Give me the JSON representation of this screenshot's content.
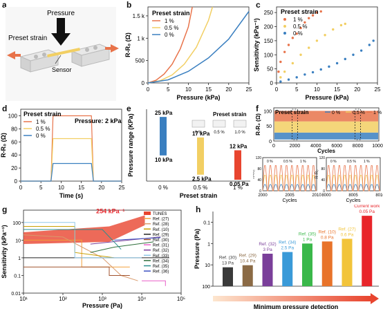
{
  "panel_labels": [
    "a",
    "b",
    "c",
    "d",
    "e",
    "f",
    "g",
    "h"
  ],
  "colors": {
    "orange": "#e8734a",
    "yellow": "#f2cf63",
    "blue": "#3a7fc0",
    "red": "#e8452f",
    "brown": "#8b5a2b"
  },
  "panel_a": {
    "pressure_label": "Pressure",
    "preset_strain_label": "Preset strain",
    "sensor_label": "Sensor"
  },
  "chart_data": [
    {
      "id": "b",
      "type": "line",
      "xlabel": "Pressure (kPa)",
      "ylabel": "R-R₀ (Ω)",
      "xlim": [
        0,
        25
      ],
      "ylim": [
        0,
        1700
      ],
      "xticks": [
        "0",
        "5",
        "10",
        "15",
        "20",
        "25"
      ],
      "yticks": [
        "0",
        "500",
        "1 k",
        "1.5 k"
      ],
      "legend_title": "Preset strain",
      "series": [
        {
          "name": "1 %",
          "color": "#e8734a",
          "x": [
            0,
            2,
            4,
            6,
            8,
            10,
            11
          ],
          "y": [
            0,
            60,
            200,
            420,
            760,
            1250,
            1700
          ]
        },
        {
          "name": "0.5 %",
          "color": "#f2cf63",
          "x": [
            0,
            3,
            6,
            9,
            12,
            15,
            16
          ],
          "y": [
            0,
            50,
            180,
            420,
            800,
            1400,
            1700
          ]
        },
        {
          "name": "0 %",
          "color": "#3a7fc0",
          "x": [
            0,
            5,
            10,
            15,
            20,
            25
          ],
          "y": [
            0,
            70,
            260,
            560,
            980,
            1600
          ]
        }
      ]
    },
    {
      "id": "c",
      "type": "scatter",
      "xlabel": "Pressure (kPa)",
      "ylabel": "Sensitivity (kPa⁻¹)",
      "xlim": [
        0,
        25
      ],
      "ylim": [
        0,
        270
      ],
      "xticks": [
        "0",
        "5",
        "10",
        "15",
        "20",
        "25"
      ],
      "yticks": [
        "0",
        "50",
        "100",
        "150",
        "200",
        "250"
      ],
      "legend_title": "Preset strain",
      "series": [
        {
          "name": "1 %",
          "color": "#e8734a",
          "x": [
            0.5,
            1,
            2,
            3,
            4,
            5,
            6,
            7,
            8,
            9,
            10,
            11
          ],
          "y": [
            40,
            75,
            110,
            135,
            160,
            175,
            195,
            215,
            230,
            240,
            250,
            254
          ]
        },
        {
          "name": "0.5 %",
          "color": "#f2cf63",
          "x": [
            1,
            2,
            4,
            6,
            8,
            10,
            12,
            14,
            16,
            17
          ],
          "y": [
            20,
            40,
            70,
            100,
            125,
            150,
            170,
            190,
            205,
            210
          ]
        },
        {
          "name": "0 %",
          "color": "#3a7fc0",
          "x": [
            1,
            3,
            5,
            7,
            9,
            11,
            13,
            15,
            17,
            19,
            21,
            23,
            24
          ],
          "y": [
            5,
            12,
            20,
            30,
            38,
            48,
            58,
            70,
            85,
            100,
            115,
            135,
            150
          ]
        }
      ]
    },
    {
      "id": "d",
      "type": "line",
      "xlabel": "Time (s)",
      "ylabel": "R-R₀ (Ω)",
      "xlim": [
        0,
        25
      ],
      "ylim": [
        0,
        110
      ],
      "xticks": [
        "0",
        "5",
        "10",
        "15",
        "20",
        "25"
      ],
      "yticks": [
        "0",
        "20",
        "40",
        "60",
        "80",
        "100"
      ],
      "legend_title": "Preset strain",
      "annotation": "Pressure: 2 kPa",
      "series": [
        {
          "name": "1 %",
          "color": "#e8734a",
          "x": [
            0,
            7.5,
            8,
            17.5,
            18,
            25
          ],
          "y": [
            0,
            0,
            100,
            100,
            0,
            0
          ]
        },
        {
          "name": "0.5 %",
          "color": "#f2cf63",
          "x": [
            0,
            7.5,
            8,
            17.5,
            18,
            25
          ],
          "y": [
            0,
            0,
            65,
            65,
            0,
            0
          ]
        },
        {
          "name": "0 %",
          "color": "#3a7fc0",
          "x": [
            0,
            7.5,
            8,
            17.5,
            18,
            25
          ],
          "y": [
            0,
            0,
            27,
            27,
            0,
            0
          ]
        }
      ]
    },
    {
      "id": "e",
      "type": "bar",
      "xlabel": "Preset strain",
      "ylabel": "Pressure range (KPa)",
      "categories": [
        "0 %",
        "0.5 %",
        "1 %"
      ],
      "bars": [
        {
          "category": "0 %",
          "top": "25 kPa",
          "bottom": "10 kPa",
          "color": "#3a7fc0",
          "from": 10,
          "to": 25
        },
        {
          "category": "0.5 %",
          "top": "17 kPa",
          "bottom": "2.5 kPa",
          "color": "#f2cf63",
          "from": 2.5,
          "to": 17
        },
        {
          "category": "1 %",
          "top": "12 kPa",
          "bottom": "0.05 Pa",
          "color": "#e8452f",
          "from": 0.05,
          "to": 12
        }
      ],
      "inset_title": "Preset strain",
      "inset_labels": [
        "0 %",
        "0.5 %",
        "1.0 %"
      ]
    },
    {
      "id": "f",
      "type": "line",
      "xlabel": "Cycles",
      "ylabel": "R-R₀ (Ω)",
      "xlim": [
        0,
        10000
      ],
      "ylim": [
        0,
        110
      ],
      "xticks": [
        "0",
        "2000",
        "4000",
        "6000",
        "8000",
        "10000"
      ],
      "yticks": [
        "0",
        "50",
        "100"
      ],
      "legend_title": "Preset strain",
      "series": [
        {
          "name": "0 %",
          "color": "#3a7fc0",
          "band": [
            5,
            28
          ]
        },
        {
          "name": "0.5 %",
          "color": "#f2cf63",
          "band": [
            28,
            65
          ]
        },
        {
          "name": "1 %",
          "color": "#e8734a",
          "band": [
            65,
            100
          ]
        }
      ],
      "insets": [
        {
          "xlabel": "Cycles",
          "ylabel": "R-R₀",
          "xticks": [
            "2000",
            "2005",
            "2010"
          ],
          "yticks": [
            "0",
            "20",
            "40",
            "60",
            "80",
            "100",
            "120"
          ],
          "legend": [
            "0 %",
            "0.5 %",
            "1 %"
          ]
        },
        {
          "xlabel": "Cycles",
          "ylabel": "R-R₀",
          "xticks": [
            "8000",
            "8005",
            "8010"
          ],
          "yticks": [
            "0",
            "20",
            "40",
            "60",
            "80",
            "100",
            "120"
          ],
          "legend": [
            "0 %",
            "0.5 %",
            "1 %"
          ]
        }
      ]
    },
    {
      "id": "g",
      "type": "line",
      "xlabel": "Pressure (Pa)",
      "ylabel": "Sensitivity (kPa⁻¹)",
      "xscale": "log",
      "yscale": "log",
      "xlim": [
        10,
        100000
      ],
      "ylim": [
        0.01,
        500
      ],
      "xticks": [
        "10¹",
        "10²",
        "10³",
        "10⁴",
        "10⁵"
      ],
      "yticks": [
        "0.01",
        "0.1",
        "1",
        "10",
        "100"
      ],
      "annotation": "254 kPa⁻¹",
      "legend": [
        {
          "name": "TUNES",
          "color": "#e8452f"
        },
        {
          "name": "Ref. (27)",
          "color": "#f2a03a"
        },
        {
          "name": "Ref. (28)",
          "color": "#d99a6c"
        },
        {
          "name": "Ref. (10)",
          "color": "#c8a000"
        },
        {
          "name": "Ref. (29)",
          "color": "#222222"
        },
        {
          "name": "Ref. (30)",
          "color": "#a0522d"
        },
        {
          "name": "Ref. (31)",
          "color": "#e85fc8"
        },
        {
          "name": "Ref. (32)",
          "color": "#7a3f9a"
        },
        {
          "name": "Ref. (33)",
          "color": "#8fc8e8"
        },
        {
          "name": "Ref. (34)",
          "color": "#2e6e3a"
        },
        {
          "name": "Ref. (35)",
          "color": "#2a8f8f"
        },
        {
          "name": "Ref. (36)",
          "color": "#3a4fc0"
        }
      ]
    },
    {
      "id": "h",
      "type": "bar",
      "ylabel": "Pressure (Pa)",
      "xlabel": "Minimum pressure detection",
      "yscale": "log",
      "yticks": [
        "100",
        "10",
        "1",
        "0.1"
      ],
      "bars": [
        {
          "ref": "Ref. (30)",
          "value_label": "13 Pa",
          "value": 13,
          "color": "#3a3a3a"
        },
        {
          "ref": "Ref. (29)",
          "value_label": "10.4 Pa",
          "value": 10.4,
          "color": "#8b6a45"
        },
        {
          "ref": "Ref. (32)",
          "value_label": "3 Pa",
          "value": 3,
          "color": "#7a3f9a"
        },
        {
          "ref": "Ref. (34)",
          "value_label": "2.5 Pa",
          "value": 2.5,
          "color": "#3a9ad8"
        },
        {
          "ref": "Ref. (35)",
          "value_label": "1 Pa",
          "value": 1,
          "color": "#3ab84a"
        },
        {
          "ref": "Ref. (10)",
          "value_label": "0.8 Pa",
          "value": 0.8,
          "color": "#e8732a"
        },
        {
          "ref": "Ref. (27)",
          "value_label": "0.6 Pa",
          "value": 0.6,
          "color": "#f2c43a"
        },
        {
          "ref": "Current work",
          "value_label": "0.05 Pa",
          "value": 0.05,
          "color": "#e8252a"
        }
      ]
    }
  ]
}
